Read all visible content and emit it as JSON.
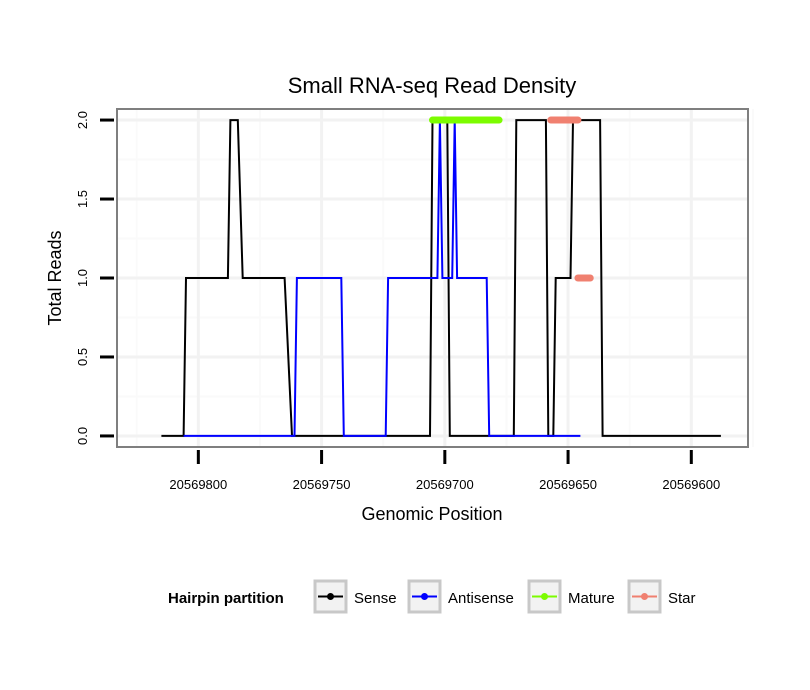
{
  "chart_data": {
    "type": "line",
    "title": "Small RNA-seq Read Density",
    "xlabel": "Genomic Position",
    "ylabel": "Total Reads",
    "xlim": [
      20569833,
      20569577
    ],
    "x_reversed": true,
    "ylim": [
      -0.07,
      2.07
    ],
    "x_ticks": [
      20569800,
      20569750,
      20569700,
      20569650,
      20569600
    ],
    "x_tick_labels": [
      "20569800",
      "20569750",
      "20569700",
      "20569650",
      "20569600"
    ],
    "y_ticks": [
      0,
      0.5,
      1,
      1.5,
      2
    ],
    "y_tick_labels": [
      "0.0",
      "0.5",
      "1.0",
      "1.5",
      "2.0"
    ],
    "grid": true,
    "series": [
      {
        "name": "Sense",
        "color": "#000000",
        "style": "line",
        "points": [
          [
            20569815,
            0
          ],
          [
            20569806,
            0
          ],
          [
            20569805,
            1
          ],
          [
            20569788,
            1
          ],
          [
            20569787,
            2
          ],
          [
            20569784,
            2
          ],
          [
            20569782,
            1
          ],
          [
            20569765,
            1
          ],
          [
            20569762,
            0
          ],
          [
            20569706,
            0
          ],
          [
            20569705,
            2
          ],
          [
            20569699,
            2
          ],
          [
            20569698,
            0
          ],
          [
            20569672,
            0
          ],
          [
            20569671,
            2
          ],
          [
            20569659,
            2
          ],
          [
            20569658,
            0
          ],
          [
            20569656,
            0
          ],
          [
            20569655,
            1
          ],
          [
            20569649,
            1
          ],
          [
            20569648,
            2
          ],
          [
            20569637,
            2
          ],
          [
            20569636,
            0
          ],
          [
            20569588,
            0
          ]
        ]
      },
      {
        "name": "Antisense",
        "color": "#0000ff",
        "style": "line",
        "points": [
          [
            20569806,
            0
          ],
          [
            20569761,
            0
          ],
          [
            20569760,
            1
          ],
          [
            20569742,
            1
          ],
          [
            20569741,
            0
          ],
          [
            20569724,
            0
          ],
          [
            20569723,
            1
          ],
          [
            20569703,
            1
          ],
          [
            20569702,
            2
          ],
          [
            20569701,
            1
          ],
          [
            20569697,
            1
          ],
          [
            20569696,
            2
          ],
          [
            20569695,
            1
          ],
          [
            20569683,
            1
          ],
          [
            20569682,
            0
          ],
          [
            20569645,
            0
          ]
        ]
      },
      {
        "name": "Mature",
        "color": "#7cfc00",
        "style": "segment",
        "points": [
          [
            20569705,
            2
          ],
          [
            20569678,
            2
          ]
        ]
      },
      {
        "name": "Star",
        "color": "#f08070",
        "style": "segment",
        "segments": [
          [
            [
              20569657,
              2
            ],
            [
              20569646,
              2
            ]
          ],
          [
            [
              20569646,
              1
            ],
            [
              20569641,
              1
            ]
          ]
        ]
      }
    ],
    "legend": {
      "title": "Hairpin partition",
      "position": "bottom",
      "entries": [
        "Sense",
        "Antisense",
        "Mature",
        "Star"
      ]
    }
  }
}
